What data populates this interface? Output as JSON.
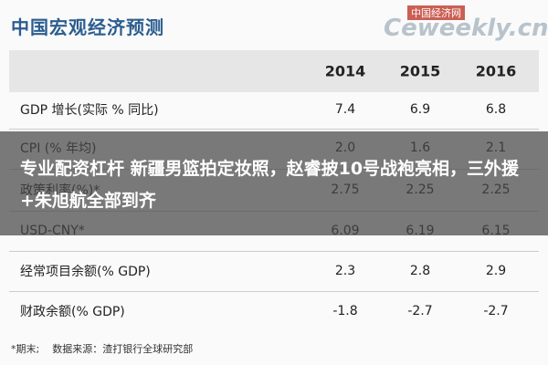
{
  "header": {
    "title": "中国宏观经济预测",
    "watermark_top": "中国经济网",
    "watermark": "Ceweekly.cn"
  },
  "table": {
    "columns": [
      "2014",
      "2015",
      "2016"
    ],
    "rows": [
      [
        "GDP 增长(实际 % 同比)",
        "7.4",
        "6.9",
        "6.8"
      ],
      [
        "CPI (% 年均)",
        "2.0",
        "1.6",
        "2.1"
      ],
      [
        "政策利率(%)*",
        "2.75",
        "2.25",
        "2.25"
      ],
      [
        "USD-CNY*",
        "6.09",
        "6.19",
        "6.15"
      ],
      [
        "经常项目余额(% GDP)",
        "2.3",
        "2.8",
        "2.9"
      ],
      [
        "财政余额(% GDP)",
        "-1.8",
        "-2.7",
        "-2.7"
      ]
    ]
  },
  "footnote": "*期末;    数据来源：渣打银行全球研究部",
  "overlay": {
    "text": "专业配资杠杆 新疆男篮拍定妆照，赵睿披10号战袍亮相，三外援+朱旭航全部到齐"
  }
}
